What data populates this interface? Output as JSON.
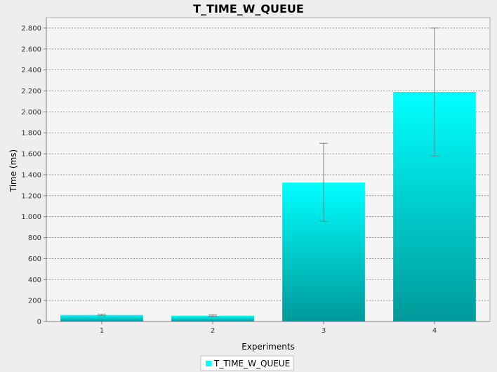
{
  "chart_data": {
    "type": "bar",
    "title": "T_TIME_W_QUEUE",
    "xlabel": "Experiments",
    "ylabel": "Time (ms)",
    "categories": [
      "1",
      "2",
      "3",
      "4"
    ],
    "series": [
      {
        "name": "T_TIME_W_QUEUE",
        "values": [
          62,
          55,
          1325,
          2190
        ],
        "error_low": [
          55,
          50,
          955,
          1580
        ],
        "error_high": [
          70,
          62,
          1700,
          2800
        ]
      }
    ],
    "ylim": [
      0,
      2900
    ],
    "yticks": [
      0,
      200,
      400,
      600,
      800,
      1000,
      1200,
      1400,
      1600,
      1800,
      2000,
      2200,
      2400,
      2600,
      2800
    ],
    "ytick_labels": [
      "0",
      "200",
      "400",
      "600",
      "800",
      "1.000",
      "1.200",
      "1.400",
      "1.600",
      "1.800",
      "2.000",
      "2.200",
      "2.400",
      "2.600",
      "2.800"
    ],
    "grid": true,
    "legend_position": "bottom",
    "colors": {
      "bar_top": "#00ffff",
      "bar_bottom": "#009999",
      "plot_background": "#f5f5f5",
      "page_background": "#eeeeee",
      "grid": "#808080",
      "error_bar": "#808080"
    }
  }
}
